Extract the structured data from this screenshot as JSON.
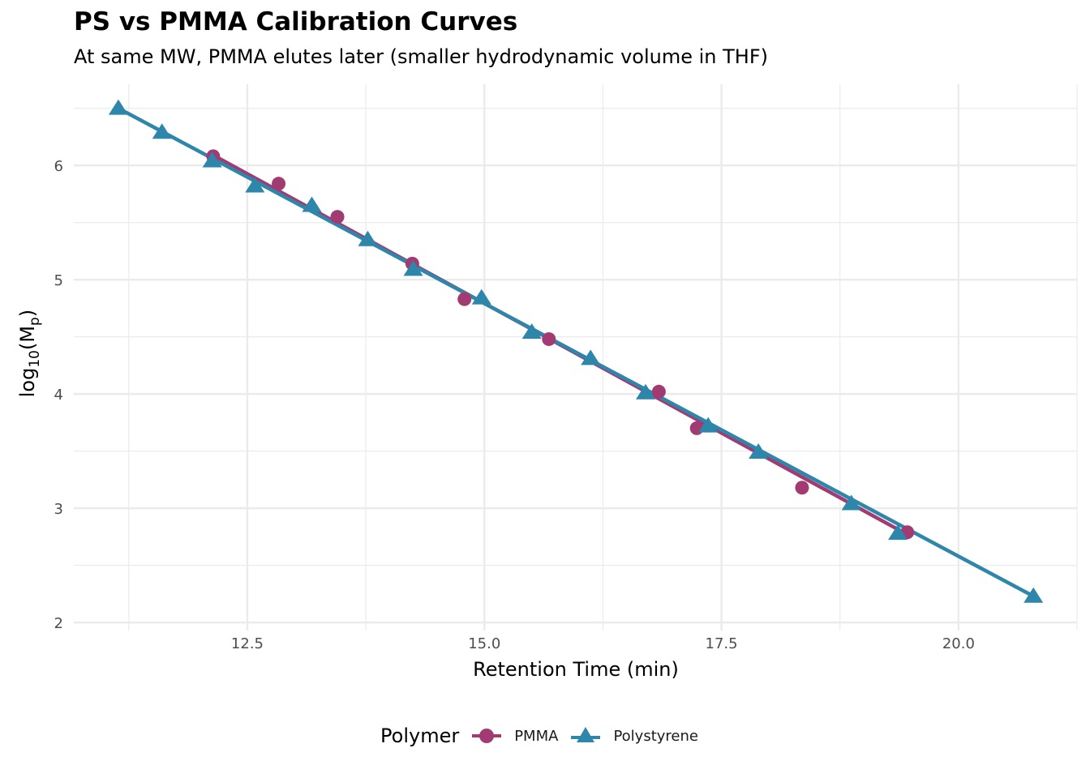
{
  "chart_data": {
    "type": "line",
    "title": "PS vs PMMA Calibration Curves",
    "subtitle": "At same MW, PMMA elutes later (smaller hydrodynamic volume in THF)",
    "xlabel": "Retention Time (min)",
    "ylabel_parts": {
      "base": "log",
      "sub1": "10",
      "mid": "(M",
      "sub2": "p",
      "end": ")"
    },
    "xlim": [
      10.67,
      21.25
    ],
    "ylim": [
      1.93,
      6.71
    ],
    "x_ticks": [
      12.5,
      15.0,
      17.5,
      20.0
    ],
    "x_tick_labels": [
      "12.5",
      "15.0",
      "17.5",
      "20.0"
    ],
    "x_minor": [
      11.25,
      13.75,
      16.25,
      18.75,
      21.25
    ],
    "y_ticks": [
      2,
      3,
      4,
      5,
      6
    ],
    "y_tick_labels": [
      "2",
      "3",
      "4",
      "5",
      "6"
    ],
    "y_minor": [
      2.5,
      3.5,
      4.5,
      5.5,
      6.5
    ],
    "grid": true,
    "legend_title": "Polymer",
    "legend_position": "bottom",
    "series": [
      {
        "name": "PMMA",
        "marker": "circle",
        "color": "#A23B72",
        "x": [
          12.14,
          12.83,
          13.45,
          14.24,
          14.79,
          15.68,
          16.84,
          17.24,
          18.35,
          19.46
        ],
        "y": [
          6.08,
          5.84,
          5.55,
          5.14,
          4.83,
          4.48,
          4.02,
          3.7,
          3.18,
          2.79
        ],
        "fit": [
          [
            12.14,
            6.09
          ],
          [
            19.46,
            2.77
          ]
        ]
      },
      {
        "name": "Polystyrene",
        "marker": "triangle",
        "color": "#2E86AB",
        "x": [
          11.14,
          11.6,
          12.13,
          12.58,
          13.18,
          13.77,
          14.25,
          14.97,
          15.5,
          16.12,
          16.7,
          17.36,
          17.89,
          18.87,
          19.36,
          20.79
        ],
        "y": [
          6.5,
          6.29,
          6.04,
          5.82,
          5.65,
          5.35,
          5.09,
          4.84,
          4.54,
          4.31,
          4.01,
          3.72,
          3.49,
          3.04,
          2.78,
          2.23
        ],
        "fit": [
          [
            11.14,
            6.5
          ],
          [
            20.79,
            2.23
          ]
        ]
      }
    ]
  }
}
